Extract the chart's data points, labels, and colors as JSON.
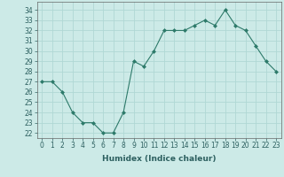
{
  "x": [
    0,
    1,
    2,
    3,
    4,
    5,
    6,
    7,
    8,
    9,
    10,
    11,
    12,
    13,
    14,
    15,
    16,
    17,
    18,
    19,
    20,
    21,
    22,
    23
  ],
  "y": [
    27,
    27,
    26,
    24,
    23,
    23,
    22,
    22,
    24,
    29,
    28.5,
    30,
    32,
    32,
    32,
    32.5,
    33,
    32.5,
    34,
    32.5,
    32,
    30.5,
    29,
    28
  ],
  "xlabel": "Humidex (Indice chaleur)",
  "xlim": [
    -0.5,
    23.5
  ],
  "ylim": [
    21.5,
    34.8
  ],
  "yticks": [
    22,
    23,
    24,
    25,
    26,
    27,
    28,
    29,
    30,
    31,
    32,
    33,
    34
  ],
  "xticks": [
    0,
    1,
    2,
    3,
    4,
    5,
    6,
    7,
    8,
    9,
    10,
    11,
    12,
    13,
    14,
    15,
    16,
    17,
    18,
    19,
    20,
    21,
    22,
    23
  ],
  "line_color": "#2d7a6a",
  "bg_color": "#cceae7",
  "grid_color": "#b0d8d4",
  "axis_color": "#666666",
  "tick_fontsize": 5.5,
  "xlabel_fontsize": 6.5
}
